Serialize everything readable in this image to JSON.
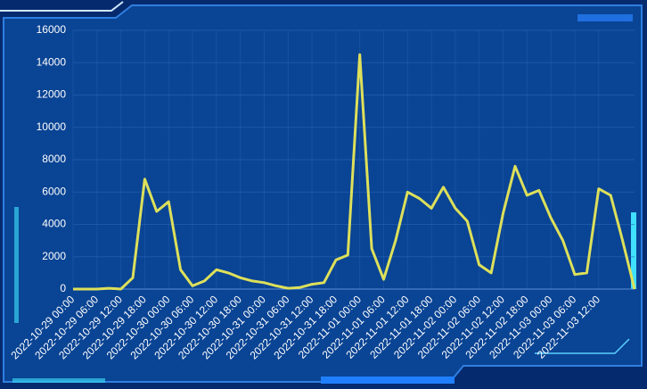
{
  "chart_data": {
    "type": "line",
    "categories": [
      "2022-10-29 00:00",
      null,
      "2022-10-29 06:00",
      null,
      "2022-10-29 12:00",
      null,
      "2022-10-29 18:00",
      null,
      "2022-10-30 00:00",
      null,
      "2022-10-30 06:00",
      null,
      "2022-10-30 12:00",
      null,
      "2022-10-30 18:00",
      null,
      "2022-10-31 00:00",
      null,
      "2022-10-31 06:00",
      null,
      "2022-10-31 12:00",
      null,
      "2022-10-31 18:00",
      null,
      "2022-11-01 00:00",
      null,
      "2022-11-01 06:00",
      null,
      "2022-11-01 12:00",
      null,
      "2022-11-01 18:00",
      null,
      "2022-11-02 00:00",
      null,
      "2022-11-02 06:00",
      null,
      "2022-11-02 12:00",
      null,
      "2022-11-02 18:00",
      null,
      "2022-11-03 00:00",
      null,
      "2022-11-03 06:00",
      null,
      "2022-11-03 12:00",
      null,
      null,
      null
    ],
    "values": [
      0,
      0,
      0,
      50,
      0,
      700,
      6800,
      4800,
      5400,
      1200,
      200,
      500,
      1200,
      1000,
      700,
      500,
      400,
      200,
      50,
      100,
      300,
      400,
      1800,
      2100,
      14500,
      2500,
      600,
      3000,
      6000,
      5600,
      5000,
      6300,
      5000,
      4200,
      1500,
      1000,
      4700,
      7600,
      5800,
      6100,
      4400,
      3000,
      900,
      1000,
      6200,
      5800,
      3000,
      0
    ],
    "color": "#dde05a",
    "ylim": [
      0,
      16000
    ],
    "yticks": [
      0,
      2000,
      4000,
      6000,
      8000,
      10000,
      12000,
      14000,
      16000
    ],
    "grid": true
  }
}
